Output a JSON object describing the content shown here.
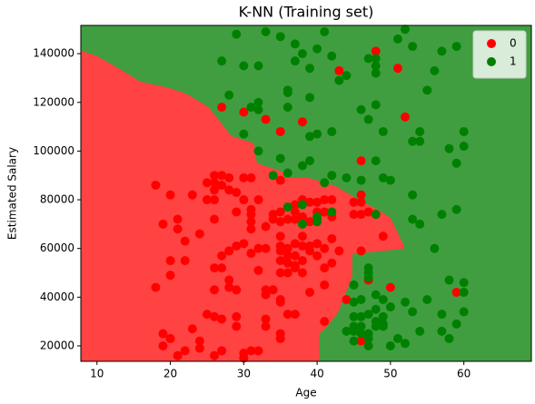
{
  "chart_data": {
    "type": "scatter",
    "title": "K-NN (Training set)",
    "x_label": "Age",
    "y_label": "Estimated Salary",
    "xlim": [
      7.8,
      69.2
    ],
    "ylim": [
      13650,
      151600
    ],
    "xticks": [
      10,
      20,
      30,
      40,
      50,
      60
    ],
    "yticks": [
      20000,
      40000,
      60000,
      80000,
      100000,
      120000,
      140000
    ],
    "legend": "upper right",
    "background_color": "#409e40",
    "regions": [
      {
        "color": "#ff4242",
        "points": [
          [
            7.8,
            141300
          ],
          [
            10,
            139000
          ],
          [
            12.8,
            134200
          ],
          [
            15.9,
            128600
          ],
          [
            19.7,
            126000
          ],
          [
            22.1,
            123700
          ],
          [
            25.2,
            118100
          ],
          [
            28.3,
            106200
          ],
          [
            31.4,
            103200
          ],
          [
            31.8,
            95000
          ],
          [
            35.5,
            91300
          ],
          [
            35.5,
            89000
          ],
          [
            38.8,
            89000
          ],
          [
            42.5,
            85700
          ],
          [
            45.6,
            80100
          ],
          [
            48.7,
            75200
          ],
          [
            50,
            72600
          ],
          [
            51.8,
            61400
          ],
          [
            51.8,
            59900
          ],
          [
            44.8,
            57700
          ],
          [
            44.8,
            48400
          ],
          [
            43.8,
            40900
          ],
          [
            42.8,
            33400
          ],
          [
            41.3,
            27800
          ],
          [
            40.3,
            24900
          ],
          [
            40.3,
            13650
          ],
          [
            7.8,
            13650
          ]
        ]
      }
    ],
    "series": [
      {
        "name": "0",
        "color": "#ff0000",
        "x": [
          27,
          30,
          33,
          35,
          38,
          43,
          48,
          51,
          52,
          46,
          18,
          19,
          20,
          21,
          21,
          23,
          22,
          24,
          25,
          25,
          26,
          26,
          26,
          26,
          26,
          27,
          27,
          28,
          28,
          29,
          29,
          30,
          30,
          31,
          31,
          31,
          31,
          31,
          32,
          33,
          34,
          35,
          35,
          35,
          35,
          35,
          36,
          36,
          36,
          37,
          37,
          37,
          37,
          37,
          38,
          38,
          38,
          38,
          39,
          39,
          39,
          39,
          40,
          40,
          40,
          40,
          40,
          41,
          41,
          41,
          41,
          41,
          42,
          42,
          42,
          42,
          43,
          44,
          45,
          45,
          46,
          46,
          46,
          46,
          47,
          47,
          48,
          49,
          50,
          59,
          41,
          46,
          18,
          19,
          19,
          20,
          20,
          20,
          21,
          22,
          22,
          23,
          24,
          24,
          25,
          26,
          26,
          26,
          26,
          27,
          27,
          27,
          28,
          28,
          28,
          29,
          29,
          29,
          29,
          30,
          30,
          30,
          31,
          31,
          32,
          32,
          32,
          33,
          33,
          33,
          33,
          34,
          35,
          35,
          35,
          35,
          35,
          35,
          35,
          36,
          36,
          36,
          37,
          37,
          37,
          38,
          38,
          39,
          33,
          27,
          34
        ],
        "values": [
          118000,
          116000,
          113000,
          108000,
          112000,
          133000,
          141000,
          134000,
          114000,
          96000,
          86000,
          70000,
          82000,
          72000,
          68000,
          82000,
          63000,
          66000,
          87000,
          80000,
          90000,
          87000,
          84000,
          80000,
          72000,
          90000,
          86000,
          89000,
          84000,
          83000,
          75000,
          89000,
          80000,
          89000,
          76000,
          74000,
          71000,
          68000,
          80000,
          69000,
          72000,
          88000,
          75000,
          71000,
          65000,
          61000,
          72000,
          57000,
          60000,
          75000,
          78000,
          72000,
          62000,
          57000,
          80000,
          73000,
          65000,
          61000,
          79000,
          71000,
          61000,
          59000,
          79000,
          75000,
          72000,
          62000,
          57000,
          80000,
          75000,
          60000,
          52000,
          45000,
          80000,
          73000,
          64000,
          54000,
          59000,
          39000,
          79000,
          74000,
          82000,
          79000,
          74000,
          59000,
          47000,
          75000,
          74000,
          65000,
          44000,
          42000,
          30000,
          22000,
          44000,
          20000,
          25000,
          23000,
          49000,
          55000,
          16000,
          18000,
          55000,
          27000,
          19000,
          22000,
          33000,
          16000,
          32000,
          43000,
          52000,
          18000,
          31000,
          57000,
          59000,
          47000,
          44000,
          43000,
          32000,
          28000,
          61000,
          17000,
          15000,
          62000,
          18000,
          58000,
          18000,
          60000,
          51000,
          43000,
          41000,
          31000,
          28000,
          43000,
          59000,
          55000,
          50000,
          39000,
          38000,
          25000,
          23000,
          54000,
          50000,
          33000,
          53000,
          52000,
          33000,
          55000,
          50000,
          42000,
          60000,
          52000,
          74000
        ]
      },
      {
        "name": "1",
        "color": "#008000",
        "x": [
          30,
          30,
          32,
          33,
          29,
          27,
          28,
          31,
          32,
          32,
          35,
          36,
          36,
          36,
          37,
          37,
          38,
          39,
          39,
          40,
          41,
          40,
          39,
          42,
          42,
          43,
          44,
          46,
          47,
          47,
          48,
          48,
          48,
          48,
          48,
          49,
          51,
          52,
          53,
          53,
          54,
          54,
          55,
          56,
          57,
          58,
          59,
          59,
          60,
          60,
          32,
          36,
          35,
          34,
          38,
          39,
          41,
          42,
          44,
          46,
          49,
          50,
          53,
          53,
          54,
          56,
          57,
          59,
          38,
          40,
          38,
          40,
          36,
          42,
          47,
          47,
          47,
          48,
          48,
          49,
          50,
          50,
          51,
          52,
          52,
          53,
          54,
          55,
          57,
          57,
          58,
          58,
          59,
          60,
          60,
          60,
          45,
          45,
          45,
          45,
          45,
          46,
          46,
          46,
          47,
          47,
          47,
          48,
          48,
          48,
          49,
          49,
          46,
          45,
          49,
          47,
          44
        ],
        "values": [
          107000,
          135000,
          135000,
          149000,
          148000,
          137000,
          123000,
          118000,
          120000,
          117000,
          147000,
          125000,
          124000,
          118000,
          144000,
          137000,
          140000,
          134000,
          122000,
          142000,
          149000,
          107000,
          106000,
          108000,
          139000,
          129000,
          131000,
          117000,
          113000,
          138000,
          138000,
          135000,
          132000,
          119000,
          96000,
          108000,
          146000,
          150000,
          143000,
          104000,
          104000,
          108000,
          125000,
          133000,
          141000,
          101000,
          143000,
          95000,
          108000,
          102000,
          100000,
          91000,
          97000,
          90000,
          94000,
          96000,
          87000,
          90000,
          89000,
          88000,
          89000,
          88000,
          82000,
          72000,
          70000,
          60000,
          74000,
          76000,
          78000,
          73000,
          70000,
          71000,
          77000,
          75000,
          52000,
          50000,
          48000,
          74000,
          41000,
          39000,
          36000,
          20000,
          23000,
          21000,
          38000,
          34000,
          26000,
          39000,
          33000,
          26000,
          23000,
          47000,
          29000,
          46000,
          42000,
          34000,
          45000,
          32000,
          28000,
          26000,
          22000,
          28000,
          32000,
          25000,
          33000,
          23000,
          25000,
          35000,
          30000,
          28000,
          32000,
          29000,
          39000,
          38000,
          28000,
          20000,
          26000
        ]
      }
    ]
  }
}
